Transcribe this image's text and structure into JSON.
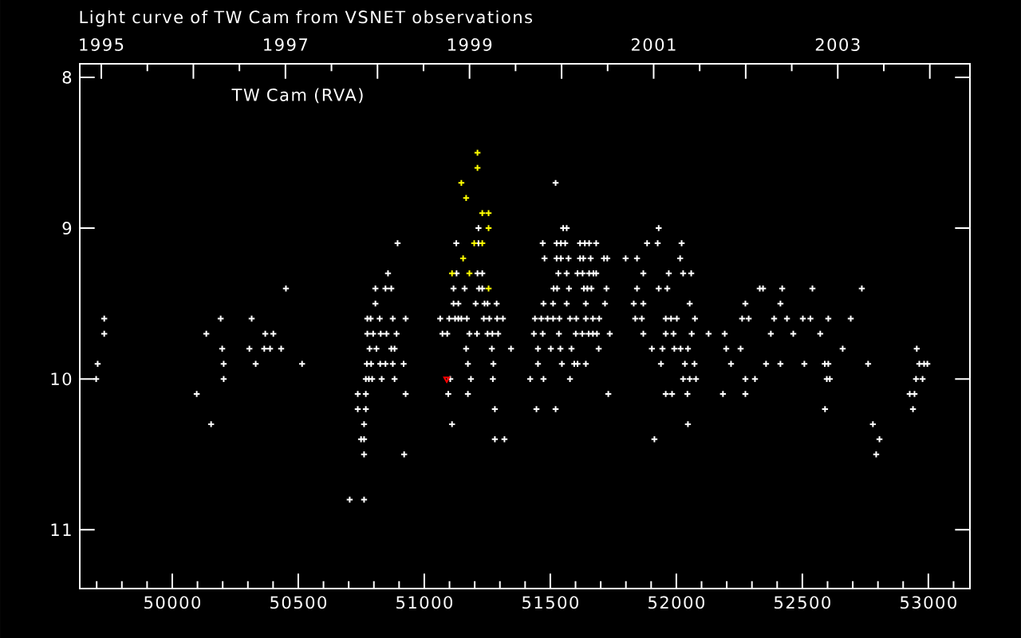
{
  "chart_data": {
    "type": "scatter",
    "title": "Light curve of TW Cam from VSNET observations",
    "annotations": [
      "TW Cam (RVA)"
    ],
    "marker": "cross",
    "xlim": [
      49633,
      53165
    ],
    "xticks": [
      {
        "value": 49700,
        "label": null
      },
      {
        "value": 49800,
        "label": null
      },
      {
        "value": 49900,
        "label": null
      },
      50000,
      {
        "value": 50100,
        "label": null
      },
      {
        "value": 50200,
        "label": null
      },
      {
        "value": 50300,
        "label": null
      },
      {
        "value": 50400,
        "label": null
      },
      50500,
      {
        "value": 50600,
        "label": null
      },
      {
        "value": 50700,
        "label": null
      },
      {
        "value": 50800,
        "label": null
      },
      {
        "value": 50900,
        "label": null
      },
      51000,
      {
        "value": 51100,
        "label": null
      },
      {
        "value": 51200,
        "label": null
      },
      {
        "value": 51300,
        "label": null
      },
      {
        "value": 51400,
        "label": null
      },
      51500,
      {
        "value": 51600,
        "label": null
      },
      {
        "value": 51700,
        "label": null
      },
      {
        "value": 51800,
        "label": null
      },
      {
        "value": 51900,
        "label": null
      },
      52000,
      {
        "value": 52100,
        "label": null
      },
      {
        "value": 52200,
        "label": null
      },
      {
        "value": 52300,
        "label": null
      },
      {
        "value": 52400,
        "label": null
      },
      52500,
      {
        "value": 52600,
        "label": null
      },
      {
        "value": 52700,
        "label": null
      },
      {
        "value": 52800,
        "label": null
      },
      {
        "value": 52900,
        "label": null
      },
      53000,
      {
        "value": 53100,
        "label": null
      }
    ],
    "x2lim": [
      1994.766,
      2004.436
    ],
    "x2ticks": [
      1995,
      {
        "value": 1995.5,
        "label": null
      },
      {
        "value": 1996,
        "label": null
      },
      {
        "value": 1996.5,
        "label": null
      },
      1997,
      {
        "value": 1997.5,
        "label": null
      },
      {
        "value": 1998,
        "label": null
      },
      {
        "value": 1998.5,
        "label": null
      },
      1999,
      {
        "value": 1999.5,
        "label": null
      },
      {
        "value": 2000,
        "label": null
      },
      {
        "value": 2000.5,
        "label": null
      },
      2001,
      {
        "value": 2001.5,
        "label": null
      },
      {
        "value": 2002,
        "label": null
      },
      {
        "value": 2002.5,
        "label": null
      },
      2003,
      {
        "value": 2003.5,
        "label": null
      },
      {
        "value": 2004,
        "label": null
      }
    ],
    "ylim": [
      11.39,
      7.91
    ],
    "yticks": [
      8,
      9,
      10,
      11
    ],
    "series": [
      {
        "color": "#ffffff",
        "x": [
          51521,
          51215,
          51551,
          51565,
          51930,
          50894,
          51127,
          51215,
          51470,
          51525,
          51542,
          51559,
          51618,
          51637,
          51654,
          51682,
          51884,
          51926,
          52021,
          51477,
          51525,
          51542,
          51572,
          51618,
          51631,
          51660,
          51713,
          51726,
          51799,
          51844,
          52015,
          50856,
          51128,
          51211,
          51230,
          51532,
          51565,
          51608,
          51628,
          51654,
          51671,
          51682,
          51869,
          51970,
          52027,
          52059,
          50451,
          50806,
          50846,
          50869,
          51116,
          51160,
          51217,
          51230,
          51513,
          51527,
          51574,
          51633,
          51647,
          51663,
          51723,
          51844,
          51930,
          51964,
          52331,
          52344,
          52420,
          52540,
          52736,
          50806,
          51116,
          51135,
          51204,
          51239,
          51251,
          51287,
          51473,
          51511,
          51565,
          51641,
          51717,
          51831,
          51869,
          52053,
          52274,
          52413,
          49730,
          50192,
          50315,
          50774,
          50787,
          50823,
          50875,
          50926,
          51063,
          51099,
          51122,
          51135,
          51147,
          51169,
          51236,
          51258,
          51289,
          51312,
          51439,
          51464,
          51489,
          51511,
          51536,
          51578,
          51603,
          51641,
          51669,
          51694,
          51837,
          51863,
          51958,
          51979,
          52002,
          52074,
          52261,
          52287,
          52388,
          52439,
          52502,
          52532,
          52603,
          52692,
          49730,
          50135,
          50369,
          50401,
          50774,
          50797,
          50827,
          50850,
          50890,
          51072,
          51091,
          51179,
          51209,
          51251,
          51270,
          51293,
          51435,
          51470,
          51534,
          51601,
          51627,
          51652,
          51669,
          51685,
          51736,
          51869,
          51958,
          51989,
          52061,
          52128,
          52192,
          52375,
          52464,
          52571,
          50198,
          50306,
          50365,
          50388,
          50432,
          50783,
          50810,
          50869,
          50882,
          51166,
          51268,
          51344,
          51451,
          51502,
          51540,
          51584,
          51692,
          51903,
          51945,
          51992,
          52017,
          52046,
          52198,
          52255,
          52660,
          52954,
          49704,
          50204,
          50331,
          50515,
          50772,
          50789,
          50825,
          50846,
          50875,
          50918,
          51173,
          51274,
          51451,
          51546,
          51595,
          51608,
          51641,
          51939,
          52034,
          52072,
          52217,
          52356,
          52413,
          52508,
          52589,
          52603,
          52761,
          52964,
          52983,
          52996,
          49698,
          50204,
          50768,
          50780,
          50793,
          50831,
          50882,
          51103,
          51185,
          51272,
          51420,
          51473,
          51578,
          52027,
          52053,
          52078,
          52274,
          52312,
          52597,
          52609,
          52951,
          52977,
          50097,
          50736,
          50768,
          50926,
          51095,
          51173,
          51730,
          51958,
          51983,
          52044,
          52185,
          52274,
          52926,
          52945,
          50736,
          50768,
          51280,
          51445,
          51521,
          52590,
          52939,
          50154,
          50761,
          51110,
          52046,
          52780,
          50749,
          50761,
          51280,
          51318,
          51913,
          52806,
          50761,
          50920,
          52793,
          50704,
          50761
        ],
        "values": [
          8.7,
          9.0,
          9.0,
          9.0,
          9.0,
          9.1,
          9.1,
          9.1,
          9.1,
          9.1,
          9.1,
          9.1,
          9.1,
          9.1,
          9.1,
          9.1,
          9.1,
          9.1,
          9.1,
          9.2,
          9.2,
          9.2,
          9.2,
          9.2,
          9.2,
          9.2,
          9.2,
          9.2,
          9.2,
          9.2,
          9.2,
          9.3,
          9.3,
          9.3,
          9.3,
          9.3,
          9.3,
          9.3,
          9.3,
          9.3,
          9.3,
          9.3,
          9.3,
          9.3,
          9.3,
          9.3,
          9.4,
          9.4,
          9.4,
          9.4,
          9.4,
          9.4,
          9.4,
          9.4,
          9.4,
          9.4,
          9.4,
          9.4,
          9.4,
          9.4,
          9.4,
          9.4,
          9.4,
          9.4,
          9.4,
          9.4,
          9.4,
          9.4,
          9.4,
          9.5,
          9.5,
          9.5,
          9.5,
          9.5,
          9.5,
          9.5,
          9.5,
          9.5,
          9.5,
          9.5,
          9.5,
          9.5,
          9.5,
          9.5,
          9.5,
          9.5,
          9.6,
          9.6,
          9.6,
          9.6,
          9.6,
          9.6,
          9.6,
          9.6,
          9.6,
          9.6,
          9.6,
          9.6,
          9.6,
          9.6,
          9.6,
          9.6,
          9.6,
          9.6,
          9.6,
          9.6,
          9.6,
          9.6,
          9.6,
          9.6,
          9.6,
          9.6,
          9.6,
          9.6,
          9.6,
          9.6,
          9.6,
          9.6,
          9.6,
          9.6,
          9.6,
          9.6,
          9.6,
          9.6,
          9.6,
          9.6,
          9.6,
          9.6,
          9.7,
          9.7,
          9.7,
          9.7,
          9.7,
          9.7,
          9.7,
          9.7,
          9.7,
          9.7,
          9.7,
          9.7,
          9.7,
          9.7,
          9.7,
          9.7,
          9.7,
          9.7,
          9.7,
          9.7,
          9.7,
          9.7,
          9.7,
          9.7,
          9.7,
          9.7,
          9.7,
          9.7,
          9.7,
          9.7,
          9.7,
          9.7,
          9.7,
          9.7,
          9.8,
          9.8,
          9.8,
          9.8,
          9.8,
          9.8,
          9.8,
          9.8,
          9.8,
          9.8,
          9.8,
          9.8,
          9.8,
          9.8,
          9.8,
          9.8,
          9.8,
          9.8,
          9.8,
          9.8,
          9.8,
          9.8,
          9.8,
          9.8,
          9.8,
          9.8,
          9.9,
          9.9,
          9.9,
          9.9,
          9.9,
          9.9,
          9.9,
          9.9,
          9.9,
          9.9,
          9.9,
          9.9,
          9.9,
          9.9,
          9.9,
          9.9,
          9.9,
          9.9,
          9.9,
          9.9,
          9.9,
          9.9,
          9.9,
          9.9,
          9.9,
          9.9,
          9.9,
          9.9,
          9.9,
          9.9,
          10.0,
          10.0,
          10.0,
          10.0,
          10.0,
          10.0,
          10.0,
          10.0,
          10.0,
          10.0,
          10.0,
          10.0,
          10.0,
          10.0,
          10.0,
          10.0,
          10.0,
          10.0,
          10.0,
          10.0,
          10.0,
          10.0,
          10.1,
          10.1,
          10.1,
          10.1,
          10.1,
          10.1,
          10.1,
          10.1,
          10.1,
          10.1,
          10.1,
          10.1,
          10.1,
          10.1,
          10.2,
          10.2,
          10.2,
          10.2,
          10.2,
          10.2,
          10.2,
          10.3,
          10.3,
          10.3,
          10.3,
          10.3,
          10.4,
          10.4,
          10.4,
          10.4,
          10.4,
          10.4,
          10.5,
          10.5,
          10.5,
          10.8,
          10.8
        ]
      },
      {
        "color": "#ffff00",
        "x": [
          51211,
          51211,
          51147,
          51166,
          51230,
          51255,
          51255,
          51198,
          51230,
          51154,
          51110,
          51179,
          51255
        ],
        "values": [
          8.5,
          8.6,
          8.7,
          8.8,
          8.9,
          8.9,
          9.0,
          9.1,
          9.1,
          9.2,
          9.3,
          9.3,
          9.4
        ]
      },
      {
        "color": "#ff0000",
        "marker": "triangle",
        "x": [
          51089
        ],
        "values": [
          10.0
        ]
      }
    ]
  }
}
